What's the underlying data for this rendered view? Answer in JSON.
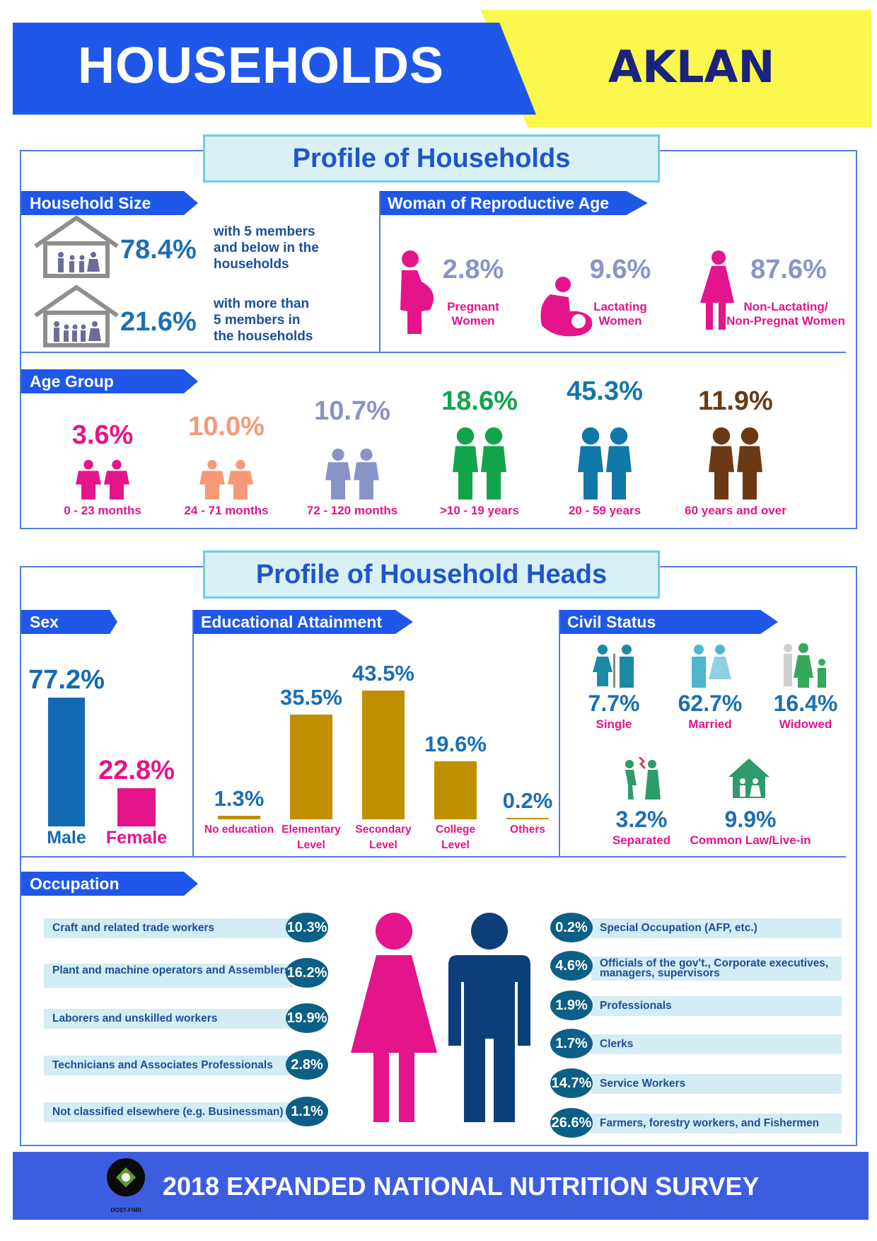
{
  "header": {
    "title": "HOUSEHOLDS",
    "province": "AKLAN"
  },
  "households": {
    "section_title": "Profile of Households",
    "household_size": {
      "label": "Household Size",
      "items": [
        {
          "pct": "78.4%",
          "text_lines": [
            "with 5 members",
            "and below in the",
            "households"
          ]
        },
        {
          "pct": "21.6%",
          "text_lines": [
            "with more than",
            "5 members in",
            "the households"
          ]
        }
      ]
    },
    "wra": {
      "label": "Woman of Reproductive Age",
      "items": [
        {
          "pct": "2.8%",
          "label_lines": [
            "Pregnant",
            "Women"
          ]
        },
        {
          "pct": "9.6%",
          "label_lines": [
            "Lactating",
            "Women"
          ]
        },
        {
          "pct": "87.6%",
          "label_lines": [
            "Non-Lactating/",
            "Non-Pregnat Women"
          ]
        }
      ]
    },
    "age_group": {
      "label": "Age Group",
      "items": [
        {
          "pct": "3.6%",
          "label": "0 - 23 months",
          "color": "#e4148a"
        },
        {
          "pct": "10.0%",
          "label": "24 - 71 months",
          "color": "#f49a78"
        },
        {
          "pct": "10.7%",
          "label": "72 - 120 months",
          "color": "#8a93c8"
        },
        {
          "pct": "18.6%",
          "label": ">10 - 19 years",
          "color": "#12a44a"
        },
        {
          "pct": "45.3%",
          "label": "20 - 59 years",
          "color": "#0f78a8"
        },
        {
          "pct": "11.9%",
          "label": "60 years and over",
          "color": "#6b3a14"
        }
      ]
    }
  },
  "heads": {
    "section_title": "Profile of Household Heads",
    "sex": {
      "label": "Sex",
      "items": [
        {
          "label": "Male",
          "pct": "77.2%",
          "value": 77.2,
          "color": "#1469b3"
        },
        {
          "label": "Female",
          "pct": "22.8%",
          "value": 22.8,
          "color": "#e4148a"
        }
      ]
    },
    "education": {
      "label": "Educational Attainment",
      "items": [
        {
          "label_lines": [
            "No education"
          ],
          "pct": "1.3%",
          "value": 1.3
        },
        {
          "label_lines": [
            "Elementary",
            "Level"
          ],
          "pct": "35.5%",
          "value": 35.5
        },
        {
          "label_lines": [
            "Secondary",
            "Level"
          ],
          "pct": "43.5%",
          "value": 43.5
        },
        {
          "label_lines": [
            "College",
            "Level"
          ],
          "pct": "19.6%",
          "value": 19.6
        },
        {
          "label_lines": [
            "Others"
          ],
          "pct": "0.2%",
          "value": 0.2
        }
      ]
    },
    "civil_status": {
      "label": "Civil Status",
      "items": [
        {
          "pct": "7.7%",
          "label": "Single"
        },
        {
          "pct": "62.7%",
          "label": "Married"
        },
        {
          "pct": "16.4%",
          "label": "Widowed"
        },
        {
          "pct": "3.2%",
          "label": "Separated"
        },
        {
          "pct": "9.9%",
          "label": "Common Law/Live-in"
        }
      ]
    },
    "occupation": {
      "label": "Occupation",
      "left": [
        {
          "label": "Craft and related trade workers",
          "pct": "10.3%"
        },
        {
          "label": "Plant and machine operators and Assemblers",
          "pct": "16.2%"
        },
        {
          "label": "Laborers and unskilled workers",
          "pct": "19.9%"
        },
        {
          "label": "Technicians and Associates Professionals",
          "pct": "2.8%"
        },
        {
          "label": "Not classified elsewhere (e.g. Businessman)",
          "pct": "1.1%"
        }
      ],
      "right": [
        {
          "label": "Special Occupation (AFP, etc.)",
          "pct": "0.2%"
        },
        {
          "label": "Officials of the gov't., Corporate executives, managers, supervisors",
          "pct": "4.6%"
        },
        {
          "label": "Professionals",
          "pct": "1.9%"
        },
        {
          "label": "Clerks",
          "pct": "1.7%"
        },
        {
          "label": "Service Workers",
          "pct": "14.7%"
        },
        {
          "label": "Farmers, forestry workers, and Fishermen",
          "pct": "26.6%"
        }
      ]
    }
  },
  "footer": {
    "text": "2018 EXPANDED NATIONAL NUTRITION SURVEY",
    "logo_text": "DOST-FNRI"
  },
  "icons": [
    "house-family-icon",
    "pregnant-woman-icon",
    "lactating-woman-icon",
    "woman-icon",
    "children-icon",
    "couple-icon",
    "elderly-couple-icon",
    "man-woman-icon",
    "dost-fnri-logo"
  ]
}
